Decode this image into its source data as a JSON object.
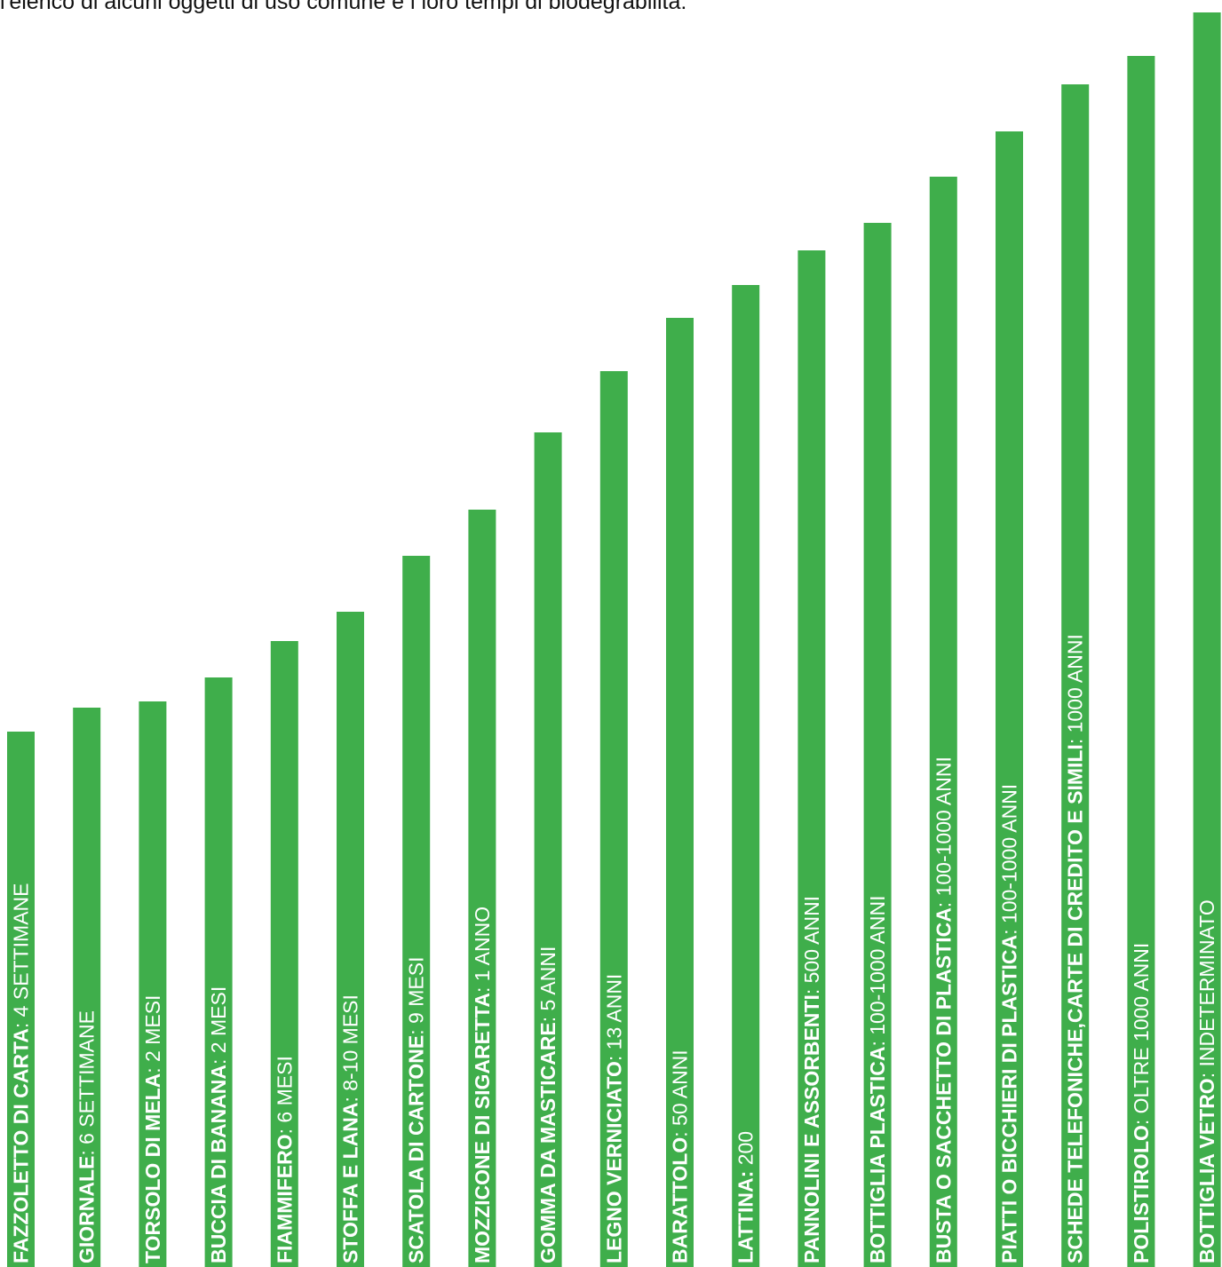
{
  "title": "l'elenco di alcuni oggetti di uso comune e i loro tempi di biodegrabilità:",
  "chart_data": {
    "type": "bar",
    "orientation": "vertical",
    "color": "#3fae4b",
    "label_color": "#ffffff",
    "categories": [
      {
        "name": "FAZZOLETTO DI CARTA",
        "sep": ": ",
        "duration": "4 SETTIMANE",
        "value": 603
      },
      {
        "name": "GIORNALE",
        "sep": ": ",
        "duration": "6 SETTIMANE",
        "value": 630
      },
      {
        "name": "TORSOLO DI MELA",
        "sep": ": ",
        "duration": "2 MESI",
        "value": 637
      },
      {
        "name": "BUCCIA DI BANANA",
        "sep": ": ",
        "duration": "2 MESI",
        "value": 664
      },
      {
        "name": "FIAMMIFERO",
        "sep": ": ",
        "duration": "6 MESI",
        "value": 705
      },
      {
        "name": "STOFFA E LANA",
        "sep": ": ",
        "duration": "8-10 MESI",
        "value": 738
      },
      {
        "name": "SCATOLA DI CARTONE",
        "sep": ": ",
        "duration": "9 MESI",
        "value": 801
      },
      {
        "name": "MOZZICONE DI SIGARETTA",
        "sep": ": ",
        "duration": "1 ANNO",
        "value": 853
      },
      {
        "name": "GOMMA DA MASTICARE",
        "sep": ": ",
        "duration": "5 ANNI",
        "value": 940
      },
      {
        "name": "LEGNO VERNICIATO",
        "sep": ": ",
        "duration": "13 ANNI",
        "value": 1009
      },
      {
        "name": "BARATTOLO",
        "sep": ": ",
        "duration": "50 ANNI",
        "value": 1069
      },
      {
        "name": "LATTINA:",
        "sep": " ",
        "duration": "200",
        "value": 1106
      },
      {
        "name": "PANNOLINI E ASSORBENTI",
        "sep": ": ",
        "duration": "500 ANNI",
        "value": 1145
      },
      {
        "name": "BOTTIGLIA PLASTICA",
        "sep": ": ",
        "duration": "100-1000 ANNI",
        "value": 1176
      },
      {
        "name": "BUSTA O SACCHETTO DI PLASTICA",
        "sep": ": ",
        "duration": "100-1000 ANNI",
        "value": 1228
      },
      {
        "name": "PIATTI O BICCHIERI DI PLASTICA",
        "sep": ": ",
        "duration": "100-1000 ANNI",
        "value": 1279
      },
      {
        "name": "SCHEDE TELEFONICHE,CARTE DI CREDITO E SIMILI",
        "sep": ": ",
        "duration": "1000 ANNI",
        "value": 1332
      },
      {
        "name": "POLISTIROLO",
        "sep": ": ",
        "duration": "OLTRE 1000 ANNI",
        "value": 1364
      },
      {
        "name": "BOTTIGLIA VETRO",
        "sep": ": ",
        "duration": "INDETERMINATO",
        "value": 1413
      }
    ]
  }
}
